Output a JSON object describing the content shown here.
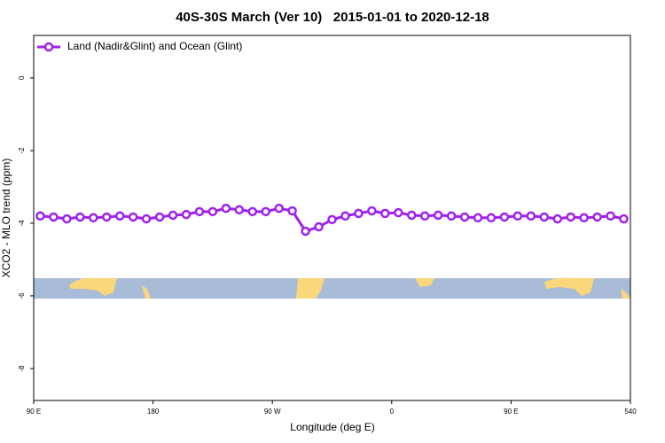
{
  "chart_data": {
    "type": "line",
    "title": "40S-30S March (Ver 10)   2015-01-01 to 2020-12-18",
    "xlabel": "Longitude (deg E)",
    "ylabel": "XCO2 - MLO trend (ppm)",
    "x": [
      95,
      105,
      115,
      125,
      135,
      145,
      155,
      165,
      175,
      185,
      195,
      205,
      215,
      225,
      235,
      245,
      255,
      265,
      275,
      285,
      295,
      305,
      315,
      325,
      335,
      345,
      355,
      365,
      375,
      385,
      395,
      405,
      415,
      425,
      435,
      445,
      455,
      465,
      475,
      485,
      495,
      505,
      515,
      525,
      535
    ],
    "series": [
      {
        "name": "Land (Nadir&Glint) and Ocean (Glint)",
        "color": "#a020f0",
        "values": [
          -3.8,
          -3.83,
          -3.88,
          -3.83,
          -3.85,
          -3.83,
          -3.8,
          -3.83,
          -3.88,
          -3.83,
          -3.78,
          -3.76,
          -3.68,
          -3.68,
          -3.59,
          -3.63,
          -3.68,
          -3.68,
          -3.59,
          -3.66,
          -4.22,
          -4.1,
          -3.9,
          -3.8,
          -3.73,
          -3.66,
          -3.73,
          -3.71,
          -3.78,
          -3.8,
          -3.78,
          -3.8,
          -3.83,
          -3.85,
          -3.85,
          -3.83,
          -3.8,
          -3.8,
          -3.83,
          -3.88,
          -3.83,
          -3.85,
          -3.83,
          -3.8,
          -3.88
        ]
      }
    ],
    "xlim": [
      90,
      540
    ],
    "xticks": [
      {
        "value": 90,
        "label": "90 E"
      },
      180,
      {
        "value": 270,
        "label": "90 W"
      },
      {
        "value": 360,
        "label": "0"
      },
      {
        "value": 450,
        "label": "90 E"
      },
      540
    ],
    "ylim": [
      -8.88,
      1.17
    ],
    "yticks": [
      0,
      -2,
      -4,
      -6,
      -8
    ],
    "legend": "top-left"
  }
}
